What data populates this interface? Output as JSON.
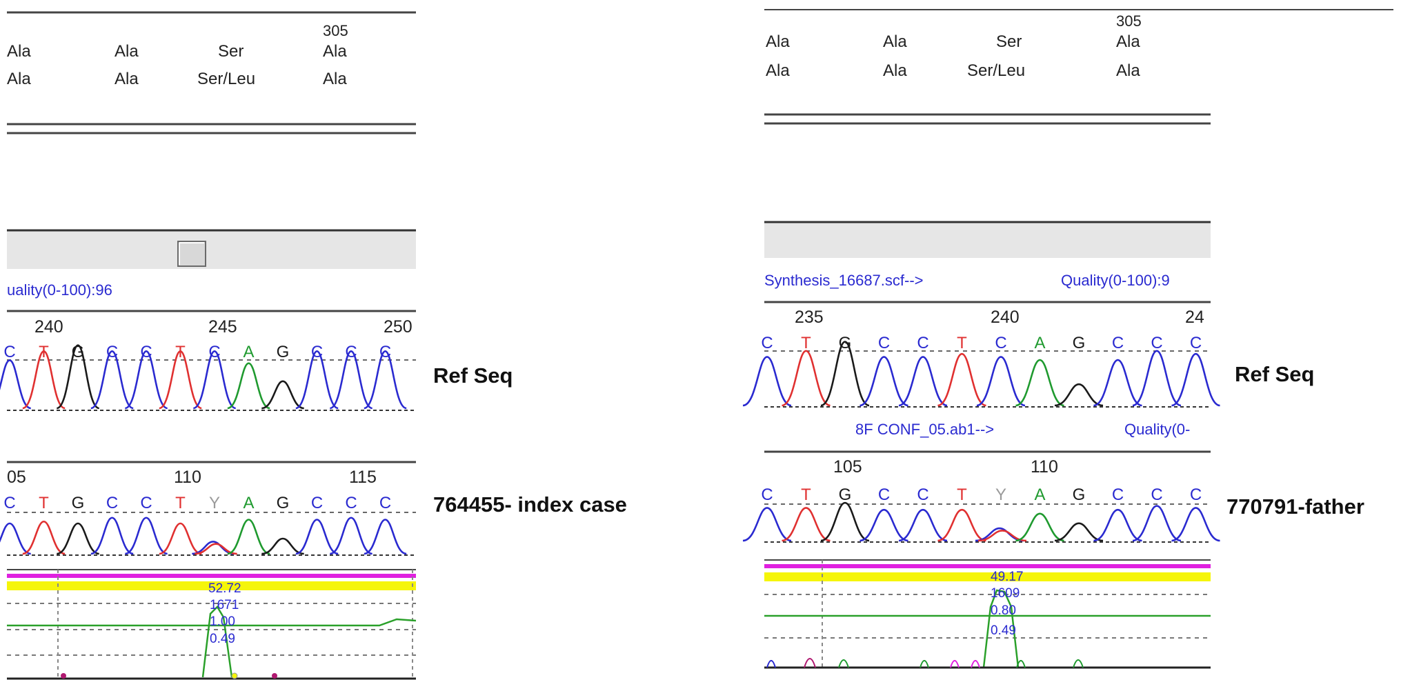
{
  "panels": [
    {
      "id": "left",
      "aa_position": "305",
      "aa_ref": [
        "Ala",
        "Ala",
        "Ser",
        "Ala"
      ],
      "aa_sample": [
        "Ala",
        "Ala",
        "Ser/Leu",
        "Ala"
      ],
      "ref_header": "",
      "ref_quality": "uality(0-100):96",
      "ref_positions": [
        "240",
        "245",
        "250"
      ],
      "ref_bases": [
        "C",
        "T",
        "G",
        "C",
        "C",
        "T",
        "C",
        "A",
        "G",
        "C",
        "C",
        "C"
      ],
      "ref_label": "Ref Seq",
      "sample_header": "",
      "sample_quality": "",
      "sample_positions": [
        "05",
        "110",
        "115"
      ],
      "sample_bases": [
        "C",
        "T",
        "G",
        "C",
        "C",
        "T",
        "Y",
        "A",
        "G",
        "C",
        "C",
        "C"
      ],
      "sample_label": "764455- index case",
      "qv_values": [
        "52.72",
        "1671",
        "1.00",
        "0.49"
      ]
    },
    {
      "id": "right",
      "aa_position": "305",
      "aa_ref": [
        "Ala",
        "Ala",
        "Ser",
        "Ala"
      ],
      "aa_sample": [
        "Ala",
        "Ala",
        "Ser/Leu",
        "Ala"
      ],
      "ref_header": "Synthesis_16687.scf-->",
      "ref_quality": "Quality(0-100):9",
      "ref_positions": [
        "235",
        "240",
        "24"
      ],
      "ref_bases": [
        "C",
        "T",
        "G",
        "C",
        "C",
        "T",
        "C",
        "A",
        "G",
        "C",
        "C",
        "C"
      ],
      "ref_label": "Ref Seq",
      "sample_header": "8F CONF_05.ab1-->",
      "sample_quality": "Quality(0-",
      "sample_positions": [
        "105",
        "110"
      ],
      "sample_bases": [
        "C",
        "T",
        "G",
        "C",
        "C",
        "T",
        "Y",
        "A",
        "G",
        "C",
        "C",
        "C"
      ],
      "sample_label": "770791-father",
      "qv_values": [
        "49.17",
        "1609",
        "0.80",
        "0.49"
      ]
    }
  ],
  "colors": {
    "A": "#1f9a2f",
    "C": "#2a2ad0",
    "G": "#1a1a1a",
    "T": "#e03030",
    "Y": "#9a9a9a",
    "magenta": "#e020e0",
    "yellow": "#f5f50a",
    "line_green": "#2aa02a"
  }
}
